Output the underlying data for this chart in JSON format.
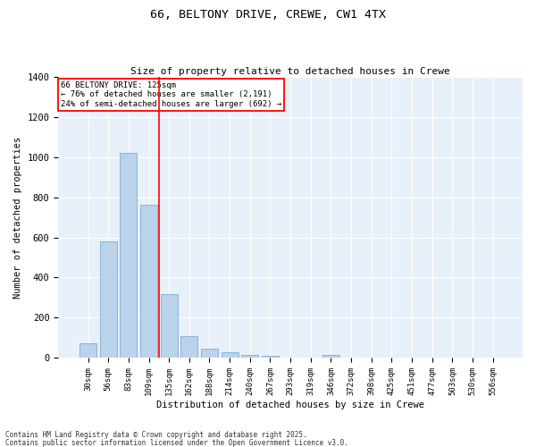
{
  "title_line1": "66, BELTONY DRIVE, CREWE, CW1 4TX",
  "title_line2": "Size of property relative to detached houses in Crewe",
  "xlabel": "Distribution of detached houses by size in Crewe",
  "ylabel": "Number of detached properties",
  "categories": [
    "30sqm",
    "56sqm",
    "83sqm",
    "109sqm",
    "135sqm",
    "162sqm",
    "188sqm",
    "214sqm",
    "240sqm",
    "267sqm",
    "293sqm",
    "319sqm",
    "346sqm",
    "372sqm",
    "398sqm",
    "425sqm",
    "451sqm",
    "477sqm",
    "503sqm",
    "530sqm",
    "556sqm"
  ],
  "values": [
    70,
    578,
    1023,
    762,
    315,
    105,
    43,
    25,
    13,
    8,
    0,
    0,
    13,
    0,
    0,
    0,
    0,
    0,
    0,
    0,
    0
  ],
  "bar_color": "#bad3ea",
  "bar_edgecolor": "#8ab4d8",
  "background_color": "#e8f0fa",
  "grid_color": "#ffffff",
  "vline_color": "red",
  "annotation_title": "66 BELTONY DRIVE: 125sqm",
  "annotation_line1": "← 76% of detached houses are smaller (2,191)",
  "annotation_line2": "24% of semi-detached houses are larger (692) →",
  "ylim": [
    0,
    1400
  ],
  "yticks": [
    0,
    200,
    400,
    600,
    800,
    1000,
    1200,
    1400
  ],
  "footnote1": "Contains HM Land Registry data © Crown copyright and database right 2025.",
  "footnote2": "Contains public sector information licensed under the Open Government Licence v3.0."
}
